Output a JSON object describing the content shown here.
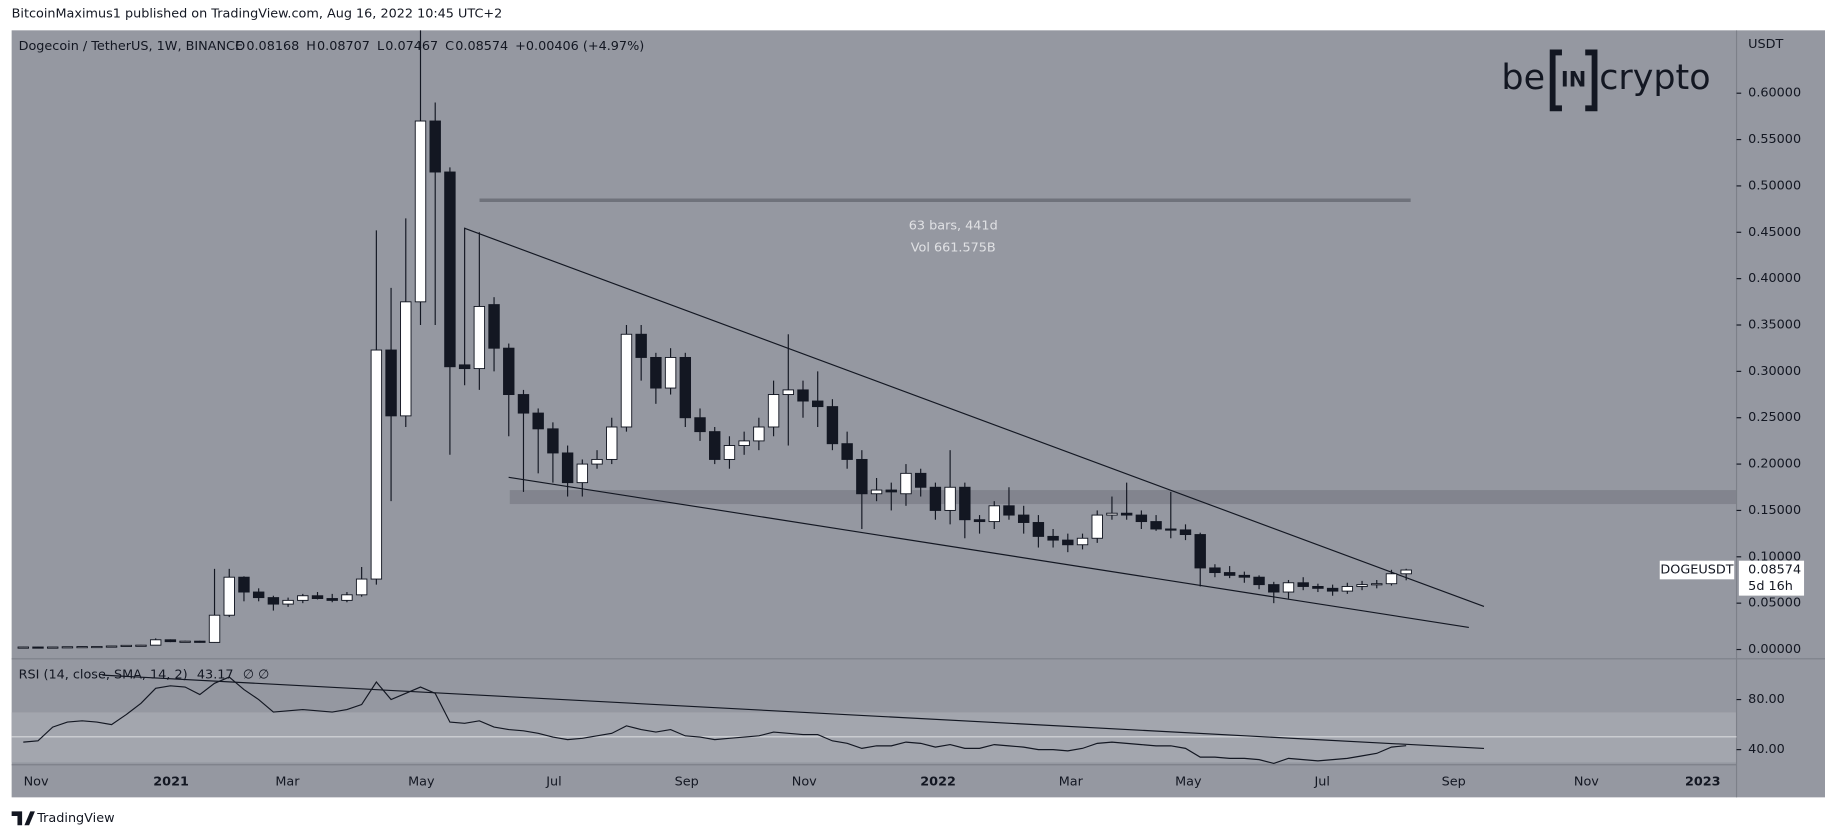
{
  "header": "BitcoinMaximus1 published on TradingView.com, Aug 16, 2022 10:45 UTC+2",
  "footer": "TradingView",
  "logo": [
    "be",
    "IN",
    "crypto"
  ],
  "chart_data": {
    "type": "candlestick",
    "title": "Dogecoin / TetherUS, 1W, BINANCE",
    "ohlc_labels": [
      "O",
      "H",
      "L",
      "C"
    ],
    "change": "+0.00406 (+4.97%)",
    "up_color": "#ffffff",
    "down_color": "#131722",
    "open": [
      0.0026,
      0.0027,
      0.0026,
      0.0027,
      0.003,
      0.0032,
      0.0033,
      0.0038,
      0.0045,
      0.0047,
      0.0105,
      0.0085,
      0.009,
      0.0077,
      0.037,
      0.078,
      0.062,
      0.056,
      0.049,
      0.053,
      0.058,
      0.055,
      0.053,
      0.059,
      0.076,
      0.323,
      0.252,
      0.375,
      0.57,
      0.515,
      0.307,
      0.303,
      0.372,
      0.325,
      0.275,
      0.255,
      0.238,
      0.212,
      0.18,
      0.2,
      0.205,
      0.24,
      0.34,
      0.315,
      0.282,
      0.315,
      0.25,
      0.235,
      0.205,
      0.22,
      0.225,
      0.24,
      0.275,
      0.28,
      0.268,
      0.262,
      0.222,
      0.205,
      0.168,
      0.172,
      0.168,
      0.19,
      0.175,
      0.15,
      0.175,
      0.14,
      0.138,
      0.155,
      0.145,
      0.137,
      0.122,
      0.118,
      0.113,
      0.12,
      0.145,
      0.147,
      0.145,
      0.138,
      0.13,
      0.129,
      0.124,
      0.088,
      0.083,
      0.08,
      0.078,
      0.07,
      0.062,
      0.072,
      0.068,
      0.066,
      0.063,
      0.068,
      0.07,
      0.071,
      0.08168
    ],
    "high": [
      0.003,
      0.003,
      0.0029,
      0.0032,
      0.0034,
      0.0036,
      0.004,
      0.0048,
      0.005,
      0.012,
      0.011,
      0.0095,
      0.0095,
      0.087,
      0.087,
      0.079,
      0.066,
      0.058,
      0.056,
      0.06,
      0.062,
      0.06,
      0.062,
      0.089,
      0.452,
      0.39,
      0.465,
      0.74,
      0.59,
      0.52,
      0.455,
      0.45,
      0.38,
      0.33,
      0.28,
      0.26,
      0.245,
      0.22,
      0.205,
      0.215,
      0.25,
      0.35,
      0.35,
      0.32,
      0.325,
      0.32,
      0.26,
      0.24,
      0.23,
      0.235,
      0.25,
      0.29,
      0.34,
      0.29,
      0.3,
      0.27,
      0.235,
      0.215,
      0.185,
      0.18,
      0.2,
      0.195,
      0.18,
      0.215,
      0.18,
      0.145,
      0.16,
      0.175,
      0.155,
      0.145,
      0.13,
      0.125,
      0.125,
      0.15,
      0.165,
      0.18,
      0.15,
      0.145,
      0.17,
      0.135,
      0.126,
      0.092,
      0.09,
      0.084,
      0.08,
      0.073,
      0.075,
      0.078,
      0.071,
      0.07,
      0.072,
      0.074,
      0.075,
      0.086,
      0.08707
    ],
    "low": [
      0.0025,
      0.0025,
      0.0025,
      0.0026,
      0.0028,
      0.003,
      0.0032,
      0.0035,
      0.004,
      0.0045,
      0.008,
      0.0078,
      0.0075,
      0.0074,
      0.035,
      0.052,
      0.052,
      0.042,
      0.046,
      0.05,
      0.054,
      0.051,
      0.051,
      0.057,
      0.07,
      0.16,
      0.24,
      0.35,
      0.35,
      0.21,
      0.285,
      0.28,
      0.3,
      0.23,
      0.17,
      0.19,
      0.18,
      0.165,
      0.165,
      0.195,
      0.2,
      0.235,
      0.29,
      0.265,
      0.275,
      0.24,
      0.225,
      0.2,
      0.195,
      0.21,
      0.215,
      0.23,
      0.22,
      0.25,
      0.24,
      0.215,
      0.195,
      0.13,
      0.16,
      0.15,
      0.155,
      0.165,
      0.14,
      0.135,
      0.12,
      0.125,
      0.13,
      0.14,
      0.125,
      0.11,
      0.11,
      0.105,
      0.108,
      0.115,
      0.14,
      0.14,
      0.13,
      0.128,
      0.12,
      0.118,
      0.068,
      0.078,
      0.077,
      0.072,
      0.065,
      0.05,
      0.055,
      0.064,
      0.062,
      0.058,
      0.06,
      0.064,
      0.066,
      0.069,
      0.07467
    ],
    "close": [
      0.0027,
      0.0026,
      0.0027,
      0.003,
      0.0032,
      0.0033,
      0.0038,
      0.0045,
      0.0047,
      0.0105,
      0.0085,
      0.009,
      0.0077,
      0.037,
      0.078,
      0.062,
      0.056,
      0.049,
      0.053,
      0.058,
      0.055,
      0.053,
      0.059,
      0.076,
      0.323,
      0.252,
      0.375,
      0.57,
      0.515,
      0.305,
      0.303,
      0.37,
      0.325,
      0.275,
      0.255,
      0.238,
      0.212,
      0.18,
      0.2,
      0.205,
      0.24,
      0.34,
      0.315,
      0.282,
      0.315,
      0.25,
      0.235,
      0.205,
      0.22,
      0.225,
      0.24,
      0.275,
      0.28,
      0.268,
      0.262,
      0.222,
      0.205,
      0.168,
      0.172,
      0.17,
      0.19,
      0.175,
      0.15,
      0.175,
      0.14,
      0.138,
      0.155,
      0.145,
      0.137,
      0.122,
      0.118,
      0.113,
      0.12,
      0.145,
      0.147,
      0.145,
      0.138,
      0.13,
      0.129,
      0.124,
      0.088,
      0.083,
      0.08,
      0.078,
      0.07,
      0.062,
      0.072,
      0.068,
      0.066,
      0.063,
      0.068,
      0.07,
      0.071,
      0.0817,
      0.08574
    ],
    "ylim": [
      -0.0088,
      0.6678
    ],
    "yticks": [
      {
        "value": 0,
        "label": "0.00000"
      },
      {
        "value": 0.05,
        "label": "0.05000"
      },
      {
        "value": 0.1,
        "label": "0.10000"
      },
      {
        "value": 0.15,
        "label": "0.15000"
      },
      {
        "value": 0.2,
        "label": "0.20000"
      },
      {
        "value": 0.25,
        "label": "0.25000"
      },
      {
        "value": 0.3,
        "label": "0.30000"
      },
      {
        "value": 0.35,
        "label": "0.35000"
      },
      {
        "value": 0.4,
        "label": "0.40000"
      },
      {
        "value": 0.45,
        "label": "0.45000"
      },
      {
        "value": 0.5,
        "label": "0.50000"
      },
      {
        "value": 0.55,
        "label": "0.55000"
      },
      {
        "value": 0.6,
        "label": "0.60000"
      }
    ],
    "y_unit": "USDT",
    "x_labels": [
      "Nov",
      "2021",
      "Mar",
      "May",
      "Jul",
      "Sep",
      "Nov",
      "2022",
      "Mar",
      "May",
      "Jul",
      "Sep",
      "Nov",
      "2023"
    ],
    "annotations": [
      "63 bars, 441d",
      "Vol 661.575B"
    ],
    "symbol_label": "DOGEUSDT",
    "countdown": "5d 16h",
    "rsi": {
      "title": "RSI (14, close, SMA, 14, 2)",
      "extra": "∅ ∅",
      "color": "#131722",
      "values": [
        46,
        47,
        58,
        62,
        63,
        62,
        60,
        68,
        77,
        89,
        91,
        90,
        84,
        93,
        98,
        88,
        80,
        70,
        71,
        72,
        71,
        70,
        72,
        76,
        94,
        80,
        85,
        90,
        85,
        62,
        61,
        63,
        58,
        56,
        55,
        53,
        50,
        48,
        49,
        51,
        53,
        59,
        56,
        54,
        56,
        51,
        50,
        48,
        49,
        50,
        51,
        54,
        53,
        52,
        52,
        47,
        45,
        41,
        43,
        43,
        46,
        45,
        42,
        44,
        41,
        41,
        44,
        43,
        42,
        40,
        40,
        39,
        41,
        45,
        46,
        45,
        44,
        43,
        43,
        41,
        34,
        34,
        33,
        33,
        32,
        29,
        33,
        32,
        31,
        32,
        33,
        35,
        37,
        42,
        43.17
      ],
      "ylim": [
        27.9,
        111.6
      ],
      "yticks": [
        {
          "value": 40,
          "label": "40.00"
        },
        {
          "value": 80,
          "label": "80.00"
        }
      ]
    }
  }
}
